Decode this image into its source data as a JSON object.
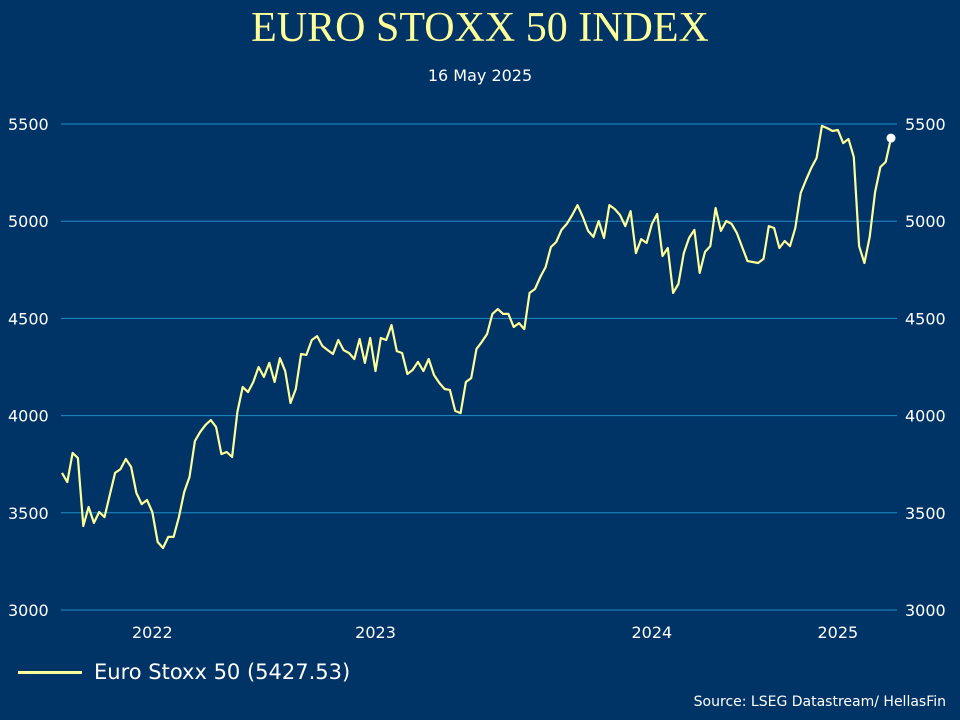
{
  "chart_data": {
    "type": "line",
    "title": "EURO STOXX 50 INDEX",
    "subtitle": "16 May 2025",
    "xlabel": "",
    "ylabel": "",
    "ylim": [
      3000,
      5500
    ],
    "y_ticks": [
      3000,
      3500,
      4000,
      4500,
      5000,
      5500
    ],
    "y_axis_sides": "left and right",
    "x_ticks": [
      {
        "label": "2022",
        "index": 17
      },
      {
        "label": "2023",
        "index": 59
      },
      {
        "label": "2024",
        "index": 111
      },
      {
        "label": "2025",
        "index": 146
      }
    ],
    "grid": "horizontal",
    "legend_position": "bottom-left",
    "series": [
      {
        "name": "Euro Stoxx 50",
        "last_value": "5427.53",
        "color": "#FFFF99",
        "last_point_marker_color": "#FFFFFF",
        "values": [
          3705,
          3658,
          3808,
          3782,
          3432,
          3530,
          3448,
          3504,
          3478,
          3592,
          3705,
          3725,
          3777,
          3736,
          3602,
          3545,
          3566,
          3504,
          3350,
          3319,
          3376,
          3376,
          3478,
          3607,
          3684,
          3869,
          3916,
          3952,
          3977,
          3941,
          3802,
          3813,
          3787,
          4019,
          4147,
          4121,
          4173,
          4250,
          4199,
          4271,
          4173,
          4296,
          4229,
          4065,
          4137,
          4317,
          4312,
          4389,
          4409,
          4358,
          4337,
          4317,
          4389,
          4337,
          4322,
          4291,
          4394,
          4271,
          4399,
          4229,
          4399,
          4389,
          4466,
          4332,
          4322,
          4214,
          4235,
          4276,
          4229,
          4291,
          4209,
          4168,
          4137,
          4132,
          4024,
          4013,
          4173,
          4193,
          4343,
          4379,
          4420,
          4523,
          4548,
          4523,
          4523,
          4456,
          4476,
          4445,
          4631,
          4651,
          4713,
          4764,
          4867,
          4893,
          4955,
          4986,
          5032,
          5083,
          5022,
          4950,
          4919,
          5001,
          4914,
          5083,
          5063,
          5032,
          4975,
          5052,
          4836,
          4908,
          4888,
          4986,
          5037,
          4821,
          4862,
          4631,
          4677,
          4836,
          4914,
          4955,
          4734,
          4842,
          4872,
          5068,
          4950,
          5001,
          4986,
          4939,
          4867,
          4795,
          4790,
          4785,
          4806,
          4975,
          4965,
          4862,
          4898,
          4872,
          4965,
          5145,
          5212,
          5274,
          5325,
          5490,
          5479,
          5464,
          5469,
          5402,
          5423,
          5330,
          4872,
          4785,
          4919,
          5150,
          5279,
          5305,
          5427.53
        ]
      }
    ],
    "legend_label": "Euro Stoxx 50 (5427.53)",
    "source": "Source: LSEG Datastream/ HellasFin",
    "colors": {
      "background": "#003366",
      "grid": "#1E8FC8",
      "line": "#FFFF99",
      "title": "#FFFF99"
    }
  }
}
